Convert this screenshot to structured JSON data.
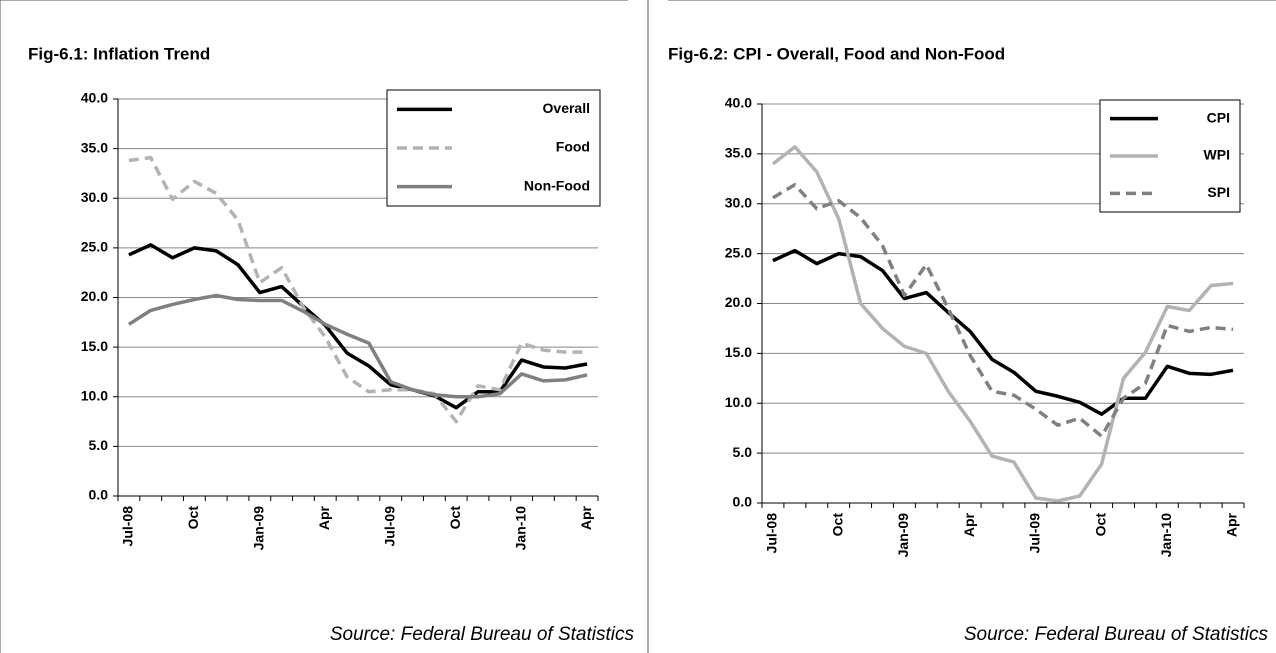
{
  "chart_data": [
    {
      "type": "line",
      "title": "Fig-6.1: Inflation Trend",
      "categories": [
        "Jul-08",
        null,
        null,
        "Oct",
        null,
        null,
        "Jan-09",
        null,
        null,
        "Apr",
        null,
        null,
        "Jul-09",
        null,
        null,
        "Oct",
        null,
        null,
        "Jan-10",
        null,
        null,
        "Apr"
      ],
      "series": [
        {
          "name": "Overall",
          "color": "#000000",
          "dashed": false,
          "values": [
            24.3,
            25.3,
            24.0,
            25.0,
            24.7,
            23.3,
            20.5,
            21.1,
            19.1,
            17.2,
            14.4,
            13.1,
            11.2,
            10.7,
            10.1,
            8.9,
            10.5,
            10.5,
            13.7,
            13.0,
            12.9,
            13.3
          ]
        },
        {
          "name": "Food",
          "color": "#b3b3b3",
          "dashed": true,
          "values": [
            33.8,
            34.1,
            29.9,
            31.7,
            30.5,
            27.8,
            21.5,
            23.0,
            19.0,
            16.0,
            12.0,
            10.5,
            10.7,
            10.7,
            10.3,
            7.5,
            11.1,
            10.7,
            15.4,
            14.7,
            14.5,
            14.5
          ]
        },
        {
          "name": "Non-Food",
          "color": "#808080",
          "dashed": false,
          "values": [
            17.3,
            18.7,
            19.3,
            19.8,
            20.2,
            19.8,
            19.7,
            19.7,
            18.6,
            17.3,
            16.3,
            15.4,
            11.5,
            10.7,
            10.2,
            10.0,
            10.0,
            10.3,
            12.3,
            11.6,
            11.7,
            12.2
          ]
        }
      ],
      "ylim": [
        0,
        40
      ],
      "yticks": [
        {
          "value": 0,
          "label": "0.0"
        },
        {
          "value": 5,
          "label": "5.0"
        },
        {
          "value": 10,
          "label": "10.0"
        },
        {
          "value": 15,
          "label": "15.0"
        },
        {
          "value": 20,
          "label": "20.0"
        },
        {
          "value": 25,
          "label": "25.0"
        },
        {
          "value": 30,
          "label": "30.0"
        },
        {
          "value": 35,
          "label": "35.0"
        },
        {
          "value": 40,
          "label": "40.0"
        }
      ],
      "grid": true,
      "legend": "top-right",
      "source": "Source: Federal Bureau of Statistics"
    },
    {
      "type": "line",
      "title": "Fig-6.2: CPI - Overall, Food and Non-Food",
      "categories": [
        "Jul-08",
        null,
        null,
        "Oct",
        null,
        null,
        "Jan-09",
        null,
        null,
        "Apr",
        null,
        null,
        "Jul-09",
        null,
        null,
        "Oct",
        null,
        null,
        "Jan-10",
        null,
        null,
        "Apr"
      ],
      "series": [
        {
          "name": "CPI",
          "color": "#000000",
          "dashed": false,
          "values": [
            24.3,
            25.3,
            24.0,
            25.0,
            24.7,
            23.3,
            20.5,
            21.1,
            19.1,
            17.2,
            14.4,
            13.1,
            11.2,
            10.7,
            10.1,
            8.9,
            10.5,
            10.5,
            13.7,
            13.0,
            12.9,
            13.3
          ]
        },
        {
          "name": "WPI",
          "color": "#b3b3b3",
          "dashed": false,
          "values": [
            34.0,
            35.7,
            33.2,
            28.5,
            20.0,
            17.5,
            15.7,
            15.0,
            11.2,
            8.2,
            4.7,
            4.1,
            0.5,
            0.2,
            0.7,
            3.9,
            12.5,
            15.1,
            19.7,
            19.3,
            21.8,
            22.0
          ]
        },
        {
          "name": "SPI",
          "color": "#808080",
          "dashed": true,
          "values": [
            30.6,
            31.9,
            29.5,
            30.3,
            28.6,
            25.8,
            20.8,
            23.9,
            19.5,
            14.8,
            11.2,
            10.8,
            9.4,
            7.8,
            8.5,
            6.7,
            10.5,
            12.0,
            17.8,
            17.2,
            17.6,
            17.4
          ]
        }
      ],
      "ylim": [
        0,
        40
      ],
      "yticks": [
        {
          "value": 0,
          "label": "0.0"
        },
        {
          "value": 5,
          "label": "5.0"
        },
        {
          "value": 10,
          "label": "10.0"
        },
        {
          "value": 15,
          "label": "15.0"
        },
        {
          "value": 20,
          "label": "20.0"
        },
        {
          "value": 25,
          "label": "25.0"
        },
        {
          "value": 30,
          "label": "30.0"
        },
        {
          "value": 35,
          "label": "35.0"
        },
        {
          "value": 40,
          "label": "40.0"
        }
      ],
      "grid": true,
      "legend": "top-right",
      "source": "Source: Federal Bureau of Statistics"
    }
  ]
}
